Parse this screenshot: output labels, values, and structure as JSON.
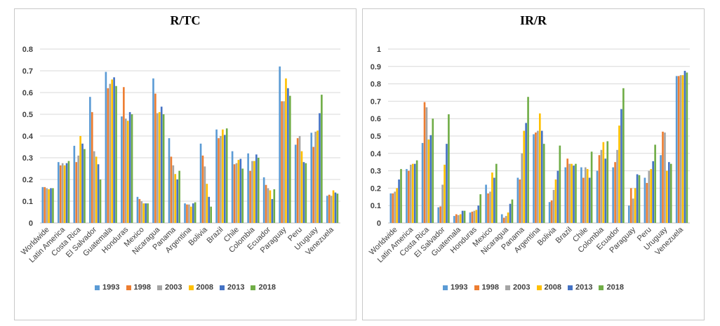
{
  "chart_data": [
    {
      "type": "bar",
      "title": "R/TC",
      "xlabel": "",
      "ylabel": "",
      "ylim": [
        0,
        0.8
      ],
      "yticks": [
        "0",
        "0.1",
        "0.2",
        "0.3",
        "0.4",
        "0.5",
        "0.6",
        "0.7",
        "0.8"
      ],
      "legend_position": "bottom",
      "categories": [
        "Worldwide",
        "Latin America",
        "Costa Rica",
        "El Salvador",
        "Guatemala",
        "Honduras",
        "Mexico",
        "Nicaragua",
        "Panama",
        "Argentina",
        "Bolivia",
        "Brazil",
        "Chile",
        "Colombia",
        "Ecuador",
        "Paraguay",
        "Peru",
        "Uruguay",
        "Venezuela"
      ],
      "series": [
        {
          "name": "1993",
          "color": "#5b9bd5",
          "values": [
            0.165,
            0.28,
            0.355,
            0.58,
            0.695,
            0.49,
            0.12,
            0.665,
            0.39,
            0.09,
            0.365,
            0.43,
            0.33,
            0.32,
            0.21,
            0.72,
            0.36,
            0.415,
            0.125
          ]
        },
        {
          "name": "1998",
          "color": "#ed7d31",
          "values": [
            0.165,
            0.265,
            0.28,
            0.51,
            0.62,
            0.625,
            0.11,
            0.595,
            0.305,
            0.085,
            0.31,
            0.39,
            0.27,
            0.24,
            0.175,
            0.56,
            0.39,
            0.35,
            0.13
          ]
        },
        {
          "name": "2003",
          "color": "#a5a5a5",
          "values": [
            0.16,
            0.275,
            0.31,
            0.33,
            0.64,
            0.48,
            0.1,
            0.505,
            0.265,
            0.085,
            0.26,
            0.4,
            0.275,
            0.285,
            0.16,
            0.56,
            0.4,
            0.42,
            0.125
          ]
        },
        {
          "name": "2008",
          "color": "#ffc000",
          "values": [
            0.155,
            0.265,
            0.4,
            0.305,
            0.66,
            0.47,
            0.09,
            0.51,
            0.225,
            0.075,
            0.18,
            0.43,
            0.29,
            0.285,
            0.15,
            0.665,
            0.33,
            0.425,
            0.15
          ]
        },
        {
          "name": "2013",
          "color": "#4472c4",
          "values": [
            0.16,
            0.275,
            0.365,
            0.27,
            0.67,
            0.51,
            0.09,
            0.535,
            0.2,
            0.09,
            0.12,
            0.405,
            0.295,
            0.315,
            0.11,
            0.62,
            0.28,
            0.505,
            0.14
          ]
        },
        {
          "name": "2018",
          "color": "#70ad47",
          "values": [
            0.16,
            0.285,
            0.34,
            0.2,
            0.63,
            0.5,
            0.09,
            0.5,
            0.24,
            0.095,
            0.075,
            0.435,
            0.25,
            0.3,
            0.155,
            0.585,
            0.275,
            0.59,
            0.135
          ]
        }
      ]
    },
    {
      "type": "bar",
      "title": "IR/R",
      "xlabel": "",
      "ylabel": "",
      "ylim": [
        0,
        1
      ],
      "yticks": [
        "0",
        "0.1",
        "0.2",
        "0.3",
        "0.4",
        "0.5",
        "0.6",
        "0.7",
        "0.8",
        "0.9",
        "1"
      ],
      "legend_position": "bottom",
      "categories": [
        "Worldwide",
        "Latin America",
        "Costa Rica",
        "El Salvador",
        "Guatemala",
        "Honduras",
        "Mexico",
        "Nicaragua",
        "Panama",
        "Argentina",
        "Bolivia",
        "Brazil",
        "Chile",
        "Colombia",
        "Ecuador",
        "Paraguay",
        "Peru",
        "Uruguay",
        "Venezuela"
      ],
      "series": [
        {
          "name": "1993",
          "color": "#5b9bd5",
          "values": [
            0.17,
            0.31,
            0.46,
            0.09,
            0.04,
            0.06,
            0.22,
            0.05,
            0.26,
            0.51,
            0.12,
            0.32,
            0.32,
            0.3,
            0.32,
            0.1,
            0.26,
            0.39,
            0.845
          ]
        },
        {
          "name": "1998",
          "color": "#ed7d31",
          "values": [
            0.17,
            0.3,
            0.695,
            0.095,
            0.05,
            0.065,
            0.17,
            0.03,
            0.25,
            0.52,
            0.13,
            0.37,
            0.26,
            0.39,
            0.35,
            0.2,
            0.23,
            0.525,
            0.845
          ]
        },
        {
          "name": "2003",
          "color": "#a5a5a5",
          "values": [
            0.18,
            0.335,
            0.665,
            0.22,
            0.045,
            0.07,
            0.18,
            0.04,
            0.4,
            0.53,
            0.19,
            0.34,
            0.32,
            0.42,
            0.42,
            0.14,
            0.3,
            0.52,
            0.85
          ]
        },
        {
          "name": "2008",
          "color": "#ffc000",
          "values": [
            0.2,
            0.34,
            0.48,
            0.335,
            0.05,
            0.075,
            0.29,
            0.06,
            0.53,
            0.63,
            0.25,
            0.34,
            0.31,
            0.465,
            0.56,
            0.2,
            0.31,
            0.3,
            0.85
          ]
        },
        {
          "name": "2013",
          "color": "#4472c4",
          "values": [
            0.25,
            0.34,
            0.505,
            0.455,
            0.07,
            0.1,
            0.26,
            0.11,
            0.575,
            0.53,
            0.3,
            0.33,
            0.26,
            0.37,
            0.655,
            0.28,
            0.355,
            0.35,
            0.875
          ]
        },
        {
          "name": "2018",
          "color": "#70ad47",
          "values": [
            0.31,
            0.36,
            0.6,
            0.625,
            0.07,
            0.165,
            0.34,
            0.135,
            0.725,
            0.455,
            0.445,
            0.34,
            0.41,
            0.47,
            0.775,
            0.275,
            0.45,
            0.34,
            0.865
          ]
        }
      ]
    }
  ]
}
